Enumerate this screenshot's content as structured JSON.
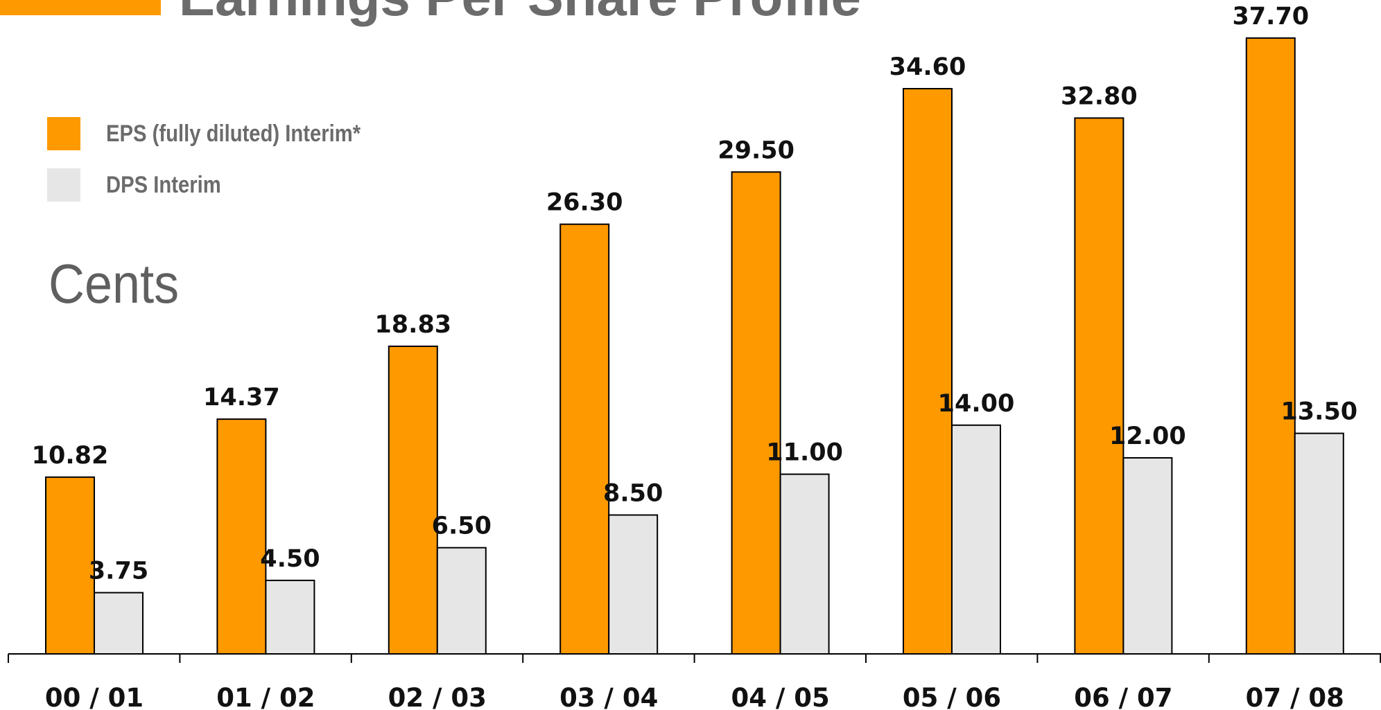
{
  "header": {
    "title": "Earnings Per Share Profile"
  },
  "colors": {
    "accent": "#FF9900",
    "eps_bar": "#FF9900",
    "dps_bar": "#E6E6E6",
    "bar_outline": "#000000",
    "title_text": "#6B6B6B"
  },
  "chart_data": {
    "type": "bar",
    "title": "Earnings Per Share Profile",
    "ylabel": "Cents",
    "xlabel": "",
    "categories": [
      "00 / 01",
      "01 / 02",
      "02 / 03",
      "03 / 04",
      "04 / 05",
      "05 / 06",
      "06 / 07",
      "07 / 08"
    ],
    "series": [
      {
        "name": "EPS (fully diluted) Interim*",
        "values": [
          10.82,
          14.37,
          18.83,
          26.3,
          29.5,
          34.6,
          32.8,
          37.7
        ],
        "labels": [
          "10.82",
          "14.37",
          "18.83",
          "26.30",
          "29.50",
          "34.60",
          "32.80",
          "37.70"
        ],
        "color": "#FF9900"
      },
      {
        "name": "DPS Interim",
        "values": [
          3.75,
          4.5,
          6.5,
          8.5,
          11.0,
          14.0,
          12.0,
          13.5
        ],
        "labels": [
          "3.75",
          "4.50",
          "6.50",
          "8.50",
          "11.00",
          "14.00",
          "12.00",
          "13.50"
        ],
        "color": "#E6E6E6"
      }
    ],
    "ylim": [
      0,
      38.5
    ],
    "grid": false,
    "legend": "top-left",
    "data_labels": true
  }
}
